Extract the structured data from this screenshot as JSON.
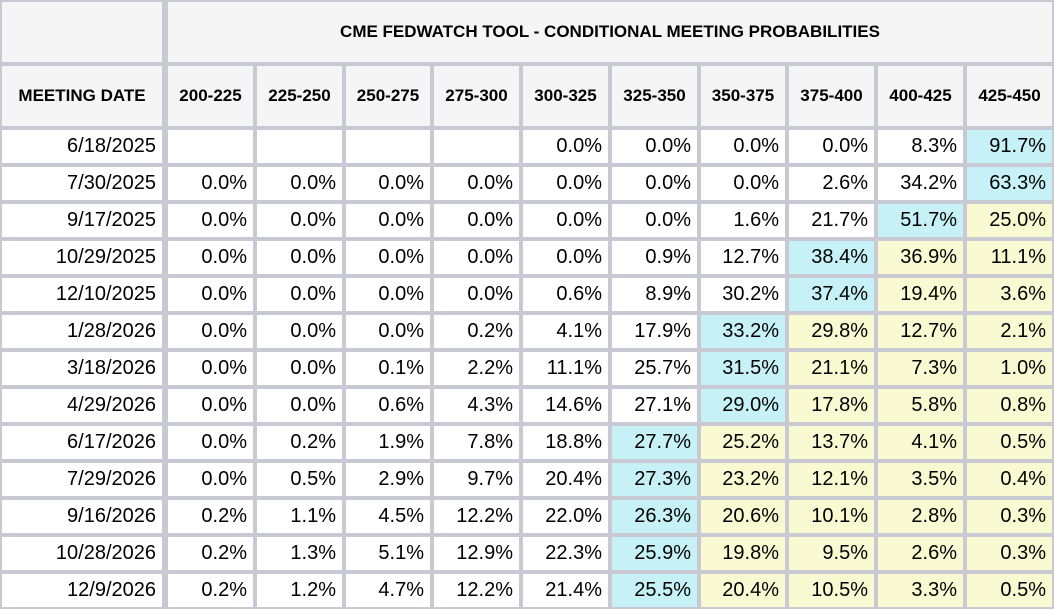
{
  "chart_data": {
    "type": "table",
    "title": "CME FEDWATCH TOOL - CONDITIONAL MEETING PROBABILITIES",
    "row_header": "MEETING DATE",
    "columns": [
      "200-225",
      "225-250",
      "250-275",
      "275-300",
      "300-325",
      "325-350",
      "350-375",
      "375-400",
      "400-425",
      "425-450"
    ],
    "rows": [
      {
        "date": "6/18/2025",
        "values": [
          "",
          "",
          "",
          "",
          "0.0%",
          "0.0%",
          "0.0%",
          "0.0%",
          "8.3%",
          "91.7%"
        ],
        "highlight": [
          "",
          "",
          "",
          "",
          "",
          "",
          "",
          "",
          "",
          "cyan"
        ]
      },
      {
        "date": "7/30/2025",
        "values": [
          "0.0%",
          "0.0%",
          "0.0%",
          "0.0%",
          "0.0%",
          "0.0%",
          "0.0%",
          "2.6%",
          "34.2%",
          "63.3%"
        ],
        "highlight": [
          "",
          "",
          "",
          "",
          "",
          "",
          "",
          "",
          "",
          "cyan"
        ]
      },
      {
        "date": "9/17/2025",
        "values": [
          "0.0%",
          "0.0%",
          "0.0%",
          "0.0%",
          "0.0%",
          "0.0%",
          "1.6%",
          "21.7%",
          "51.7%",
          "25.0%"
        ],
        "highlight": [
          "",
          "",
          "",
          "",
          "",
          "",
          "",
          "",
          "cyan",
          "yellow"
        ]
      },
      {
        "date": "10/29/2025",
        "values": [
          "0.0%",
          "0.0%",
          "0.0%",
          "0.0%",
          "0.0%",
          "0.9%",
          "12.7%",
          "38.4%",
          "36.9%",
          "11.1%"
        ],
        "highlight": [
          "",
          "",
          "",
          "",
          "",
          "",
          "",
          "cyan",
          "yellow",
          "yellow"
        ]
      },
      {
        "date": "12/10/2025",
        "values": [
          "0.0%",
          "0.0%",
          "0.0%",
          "0.0%",
          "0.6%",
          "8.9%",
          "30.2%",
          "37.4%",
          "19.4%",
          "3.6%"
        ],
        "highlight": [
          "",
          "",
          "",
          "",
          "",
          "",
          "",
          "cyan",
          "yellow",
          "yellow"
        ]
      },
      {
        "date": "1/28/2026",
        "values": [
          "0.0%",
          "0.0%",
          "0.0%",
          "0.2%",
          "4.1%",
          "17.9%",
          "33.2%",
          "29.8%",
          "12.7%",
          "2.1%"
        ],
        "highlight": [
          "",
          "",
          "",
          "",
          "",
          "",
          "cyan",
          "yellow",
          "yellow",
          "yellow"
        ]
      },
      {
        "date": "3/18/2026",
        "values": [
          "0.0%",
          "0.0%",
          "0.1%",
          "2.2%",
          "11.1%",
          "25.7%",
          "31.5%",
          "21.1%",
          "7.3%",
          "1.0%"
        ],
        "highlight": [
          "",
          "",
          "",
          "",
          "",
          "",
          "cyan",
          "yellow",
          "yellow",
          "yellow"
        ]
      },
      {
        "date": "4/29/2026",
        "values": [
          "0.0%",
          "0.0%",
          "0.6%",
          "4.3%",
          "14.6%",
          "27.1%",
          "29.0%",
          "17.8%",
          "5.8%",
          "0.8%"
        ],
        "highlight": [
          "",
          "",
          "",
          "",
          "",
          "",
          "cyan",
          "yellow",
          "yellow",
          "yellow"
        ]
      },
      {
        "date": "6/17/2026",
        "values": [
          "0.0%",
          "0.2%",
          "1.9%",
          "7.8%",
          "18.8%",
          "27.7%",
          "25.2%",
          "13.7%",
          "4.1%",
          "0.5%"
        ],
        "highlight": [
          "",
          "",
          "",
          "",
          "",
          "cyan",
          "yellow",
          "yellow",
          "yellow",
          "yellow"
        ]
      },
      {
        "date": "7/29/2026",
        "values": [
          "0.0%",
          "0.5%",
          "2.9%",
          "9.7%",
          "20.4%",
          "27.3%",
          "23.2%",
          "12.1%",
          "3.5%",
          "0.4%"
        ],
        "highlight": [
          "",
          "",
          "",
          "",
          "",
          "cyan",
          "yellow",
          "yellow",
          "yellow",
          "yellow"
        ]
      },
      {
        "date": "9/16/2026",
        "values": [
          "0.2%",
          "1.1%",
          "4.5%",
          "12.2%",
          "22.0%",
          "26.3%",
          "20.6%",
          "10.1%",
          "2.8%",
          "0.3%"
        ],
        "highlight": [
          "",
          "",
          "",
          "",
          "",
          "cyan",
          "yellow",
          "yellow",
          "yellow",
          "yellow"
        ]
      },
      {
        "date": "10/28/2026",
        "values": [
          "0.2%",
          "1.3%",
          "5.1%",
          "12.9%",
          "22.3%",
          "25.9%",
          "19.8%",
          "9.5%",
          "2.6%",
          "0.3%"
        ],
        "highlight": [
          "",
          "",
          "",
          "",
          "",
          "cyan",
          "yellow",
          "yellow",
          "yellow",
          "yellow"
        ]
      },
      {
        "date": "12/9/2026",
        "values": [
          "0.2%",
          "1.2%",
          "4.7%",
          "12.2%",
          "21.4%",
          "25.5%",
          "20.4%",
          "10.5%",
          "3.3%",
          "0.5%"
        ],
        "highlight": [
          "",
          "",
          "",
          "",
          "",
          "cyan",
          "yellow",
          "yellow",
          "yellow",
          "yellow"
        ]
      }
    ]
  }
}
